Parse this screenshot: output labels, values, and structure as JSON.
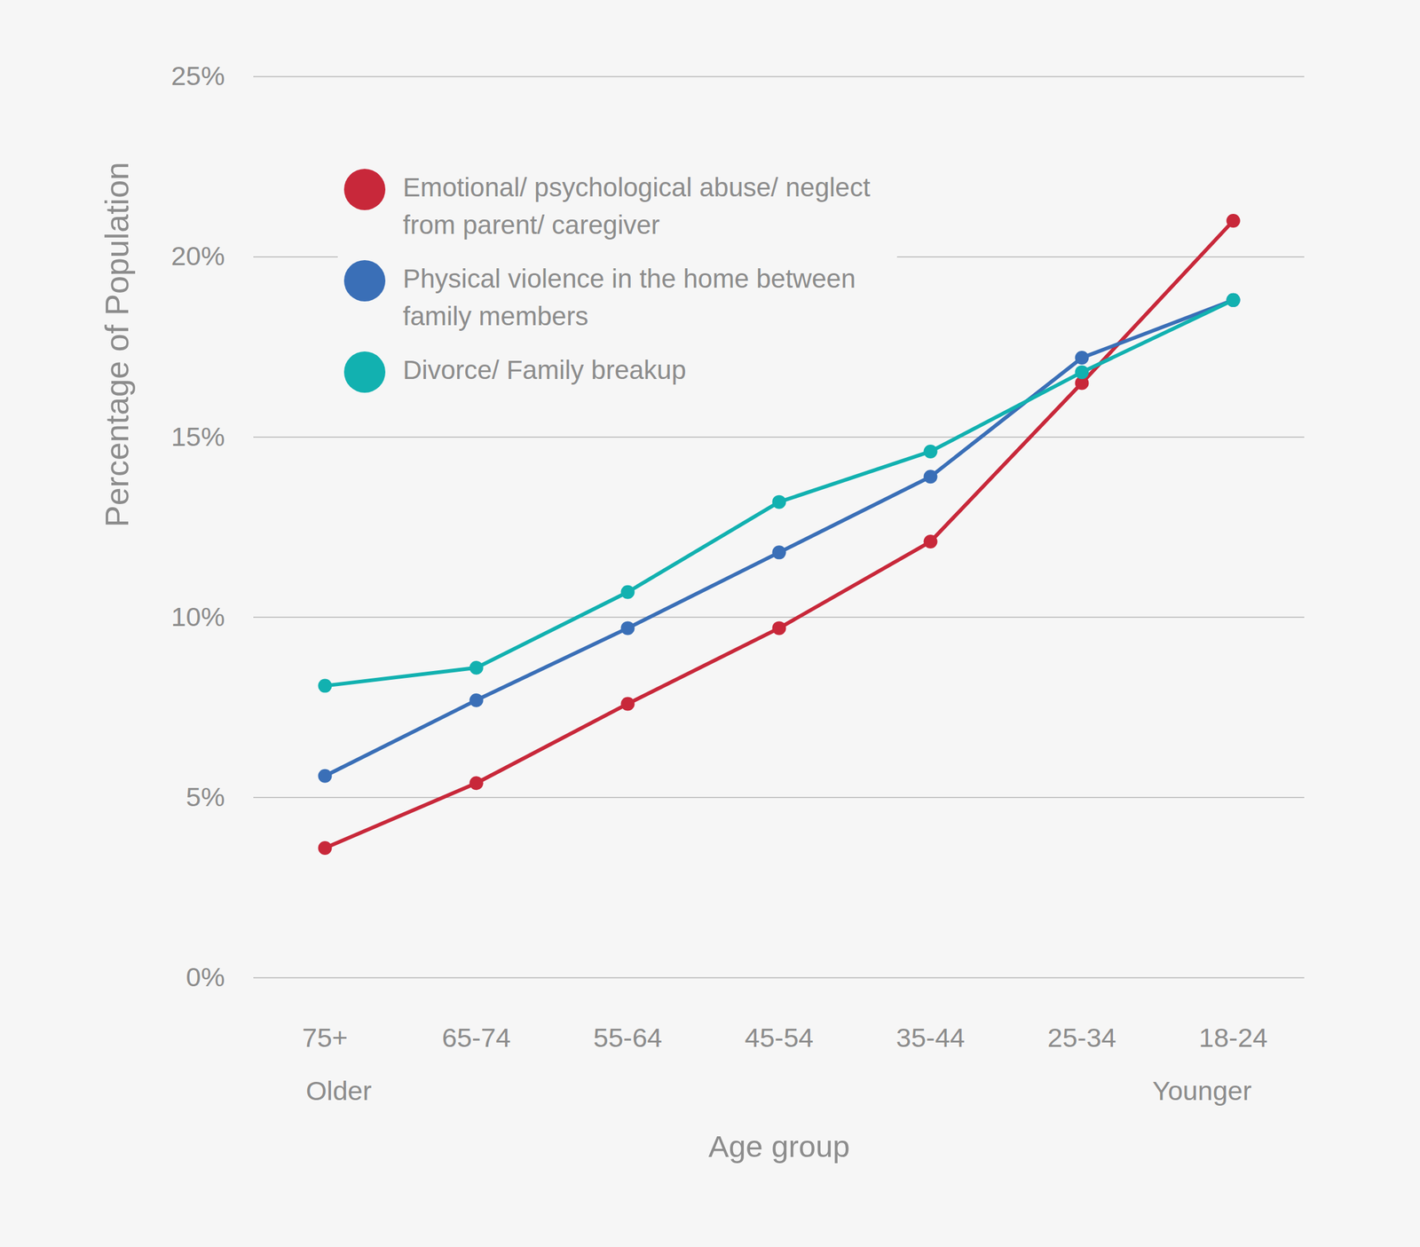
{
  "chart_data": {
    "type": "line",
    "categories": [
      "75+",
      "65-74",
      "55-64",
      "45-54",
      "35-44",
      "25-34",
      "18-24"
    ],
    "series": [
      {
        "name": "Emotional/ psychological abuse/ neglect from parent/ caregiver",
        "color": "#c8283a",
        "marker": "circle",
        "values": [
          3.6,
          5.4,
          7.6,
          9.7,
          12.1,
          16.5,
          21.0
        ]
      },
      {
        "name": "Physical violence in the home between family members",
        "color": "#3a6fb7",
        "marker": "circle",
        "values": [
          5.6,
          7.7,
          9.7,
          11.8,
          13.9,
          17.2,
          18.8
        ]
      },
      {
        "name": "Divorce/ Family breakup",
        "color": "#12b1b0",
        "marker": "circle",
        "values": [
          8.1,
          8.6,
          10.7,
          13.2,
          14.6,
          16.8,
          18.8
        ]
      }
    ],
    "x_label": "Age group",
    "y_label": "Percentage of Population",
    "annotations": [
      {
        "text": "Older",
        "x": "75+"
      },
      {
        "text": "Younger",
        "x": "18-24"
      }
    ],
    "ylim": [
      0,
      25
    ],
    "yticks": [
      {
        "value": 0,
        "label": "0%"
      },
      {
        "value": 5,
        "label": "5%"
      },
      {
        "value": 10,
        "label": "10%"
      },
      {
        "value": 15,
        "label": "15%"
      },
      {
        "value": 20,
        "label": "20%"
      },
      {
        "value": 25,
        "label": "25%"
      }
    ],
    "grid": true,
    "legend": "top-left"
  }
}
